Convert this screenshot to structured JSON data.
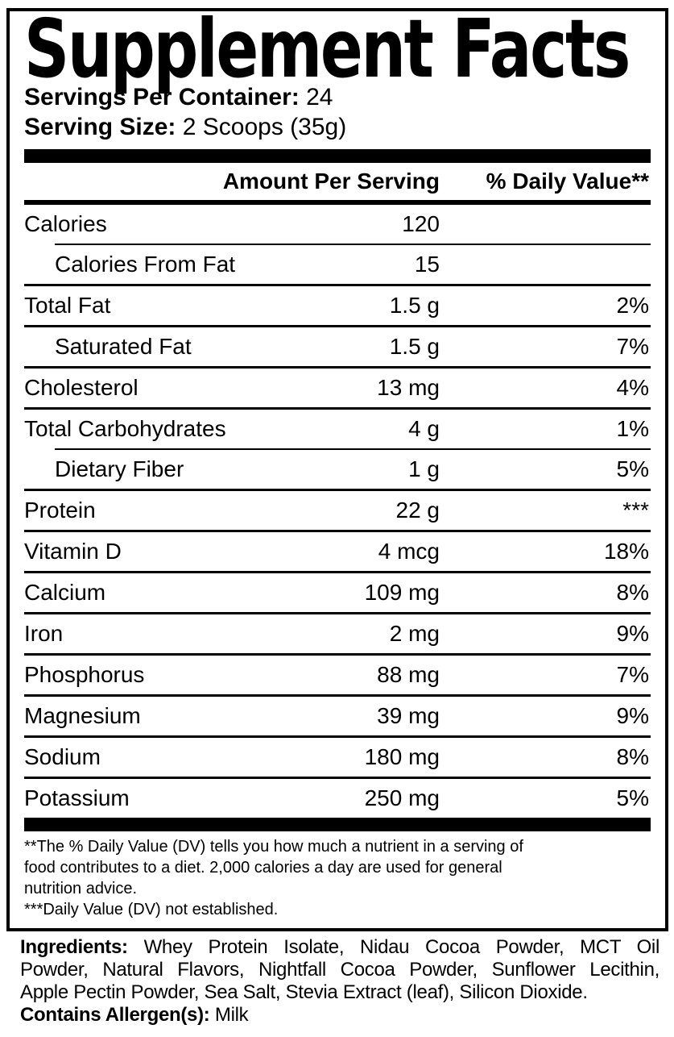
{
  "colors": {
    "ink": "#000000",
    "paper": "#ffffff"
  },
  "label": {
    "title": "Supplement Facts",
    "servings_per_container": {
      "label": "Servings Per Container:",
      "value": "24"
    },
    "serving_size": {
      "label": "Serving Size:",
      "value": "2 Scoops (35g)"
    },
    "table": {
      "header": {
        "amount": "Amount Per Serving",
        "dv": "% Daily Value**"
      },
      "rows": [
        {
          "name": "Calories",
          "amount": "120",
          "dv": ""
        },
        {
          "name": "Calories From Fat",
          "amount": "15",
          "dv": ""
        },
        {
          "name": "Total Fat",
          "amount": "1.5 g",
          "dv": "2%"
        },
        {
          "name": "Saturated Fat",
          "amount": "1.5 g",
          "dv": "7%"
        },
        {
          "name": "Cholesterol",
          "amount": "13 mg",
          "dv": "4%"
        },
        {
          "name": "Total Carbohydrates",
          "amount": "4 g",
          "dv": "1%"
        },
        {
          "name": "Dietary Fiber",
          "amount": "1 g",
          "dv": "5%"
        },
        {
          "name": "Protein",
          "amount": "22 g",
          "dv": "***"
        },
        {
          "name": "Vitamin D",
          "amount": "4 mcg",
          "dv": "18%"
        },
        {
          "name": "Calcium",
          "amount": "109 mg",
          "dv": "8%"
        },
        {
          "name": "Iron",
          "amount": "2 mg",
          "dv": "9%"
        },
        {
          "name": "Phosphorus",
          "amount": "88 mg",
          "dv": "7%"
        },
        {
          "name": "Magnesium",
          "amount": "39 mg",
          "dv": "9%"
        },
        {
          "name": "Sodium",
          "amount": "180 mg",
          "dv": "8%"
        },
        {
          "name": "Potassium",
          "amount": "250 mg",
          "dv": "5%"
        }
      ]
    },
    "footnotes": [
      "**The % Daily Value (DV) tells you how much a nutrient in a serving of",
      "food contributes to a diet. 2,000 calories a day are used for general",
      "nutrition advice.",
      "***Daily Value (DV) not established."
    ],
    "ingredients": {
      "label": "Ingredients:",
      "line1_rest": "Whey Protein Isolate, Nidau Cocoa Powder, MCT Oil",
      "line2": "Powder, Natural Flavors, Nightfall Cocoa Powder, Sunflower Lecithin,",
      "line3": "Apple Pectin Powder, Sea Salt, Stevia Extract (leaf), Silicon Dioxide.",
      "allergen_label": "Contains Allergen(s):",
      "allergen_value": "Milk"
    }
  }
}
